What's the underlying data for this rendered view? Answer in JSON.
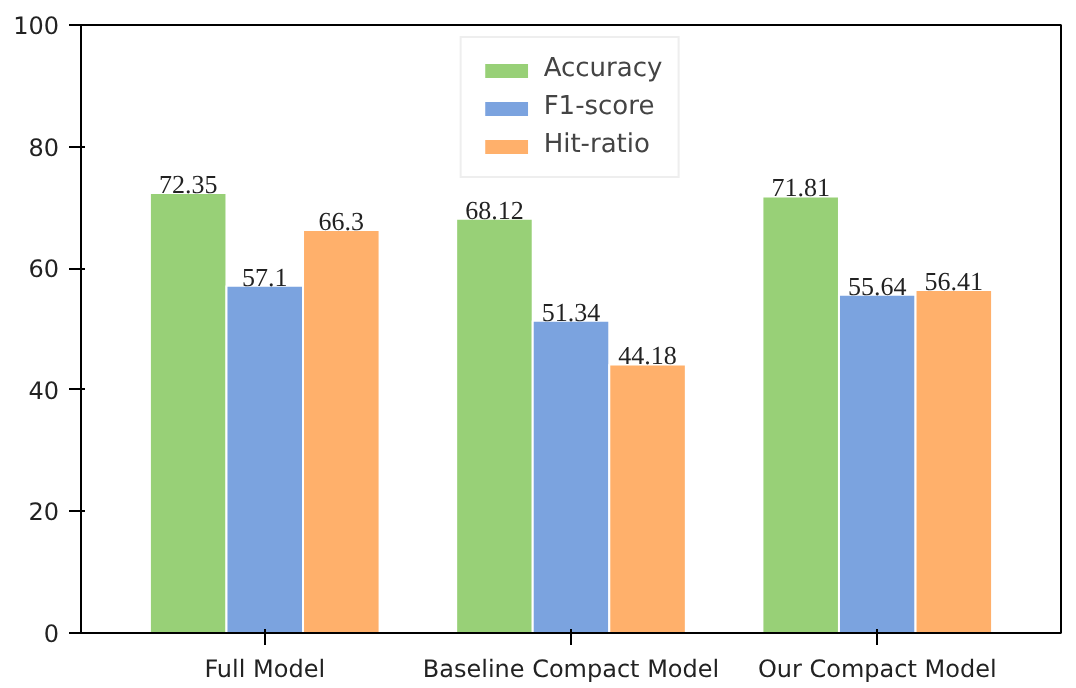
{
  "chart_data": {
    "type": "bar",
    "categories": [
      "Full Model",
      "Baseline Compact Model",
      "Our Compact Model"
    ],
    "series": [
      {
        "name": "Accuracy",
        "color": "#98d077",
        "values": [
          72.35,
          68.12,
          71.81
        ]
      },
      {
        "name": "F1-score",
        "color": "#7ba3df",
        "values": [
          57.1,
          51.34,
          55.64
        ]
      },
      {
        "name": "Hit-ratio",
        "color": "#ffb06b",
        "values": [
          66.3,
          44.18,
          56.41
        ]
      }
    ],
    "ylim": [
      0,
      100
    ],
    "yticks": [
      0,
      20,
      40,
      60,
      80,
      100
    ],
    "data_labels": true,
    "legend": "top",
    "grid": false
  }
}
